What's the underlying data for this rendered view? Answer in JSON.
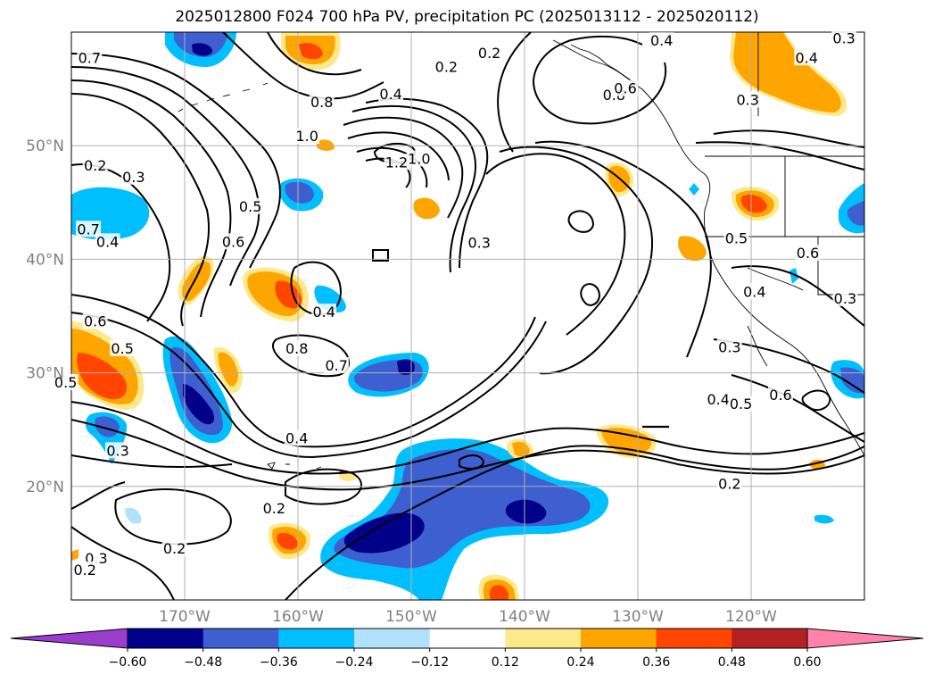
{
  "title": "2025012800 F024 700 hPa PV, precipitation PC (2025013112 - 2025020112)",
  "map": {
    "projection": "equirectangular",
    "lon_range": [
      -180,
      -110
    ],
    "lat_range": [
      10,
      60
    ],
    "lat_ticks": [
      {
        "value": 20,
        "label": "20°N"
      },
      {
        "value": 30,
        "label": "30°N"
      },
      {
        "value": 40,
        "label": "40°N"
      },
      {
        "value": 50,
        "label": "50°N"
      }
    ],
    "lon_ticks": [
      {
        "value": -170,
        "label": "170°W"
      },
      {
        "value": -160,
        "label": "160°W"
      },
      {
        "value": -150,
        "label": "150°W"
      },
      {
        "value": -140,
        "label": "140°W"
      },
      {
        "value": -130,
        "label": "130°W"
      },
      {
        "value": -120,
        "label": "120°W"
      }
    ],
    "grid": true,
    "grid_color": "#b0b0b0"
  },
  "contour_labels": [
    {
      "text": "0.7",
      "lon": -178.4,
      "lat": 57.7
    },
    {
      "text": "0.8",
      "lon": -157.9,
      "lat": 53.8
    },
    {
      "text": "0.4",
      "lon": -151.8,
      "lat": 54.5
    },
    {
      "text": "0.2",
      "lon": -146.9,
      "lat": 56.9
    },
    {
      "text": "0.2",
      "lon": -143.1,
      "lat": 58.1
    },
    {
      "text": "0.4",
      "lon": -127.9,
      "lat": 59.2
    },
    {
      "text": "0.3",
      "lon": -111.8,
      "lat": 59.4
    },
    {
      "text": "0.4",
      "lon": -115.1,
      "lat": 57.7
    },
    {
      "text": "0.3",
      "lon": -120.3,
      "lat": 54.0
    },
    {
      "text": "0.8",
      "lon": -132.1,
      "lat": 54.4
    },
    {
      "text": "0.6",
      "lon": -131.1,
      "lat": 55.0
    },
    {
      "text": "1.0",
      "lon": -159.2,
      "lat": 50.8
    },
    {
      "text": "1.2",
      "lon": -151.3,
      "lat": 48.5
    },
    {
      "text": "1.0",
      "lon": -149.3,
      "lat": 48.8
    },
    {
      "text": "0.2",
      "lon": -177.9,
      "lat": 48.2
    },
    {
      "text": "0.3",
      "lon": -174.5,
      "lat": 47.2
    },
    {
      "text": "0.5",
      "lon": -164.2,
      "lat": 44.6
    },
    {
      "text": "0.6",
      "lon": -165.7,
      "lat": 41.5
    },
    {
      "text": "0.7",
      "lon": -178.5,
      "lat": 42.6
    },
    {
      "text": "0.4",
      "lon": -176.8,
      "lat": 41.5
    },
    {
      "text": "0.3",
      "lon": -144.0,
      "lat": 41.4
    },
    {
      "text": "0.5",
      "lon": -121.3,
      "lat": 41.8
    },
    {
      "text": "0.6",
      "lon": -115.0,
      "lat": 40.5
    },
    {
      "text": "0.4",
      "lon": -119.7,
      "lat": 37.1
    },
    {
      "text": "0.3",
      "lon": -111.7,
      "lat": 36.5
    },
    {
      "text": "0.4",
      "lon": -157.7,
      "lat": 35.3
    },
    {
      "text": "0.6",
      "lon": -177.9,
      "lat": 34.5
    },
    {
      "text": "0.5",
      "lon": -175.5,
      "lat": 32.1
    },
    {
      "text": "0.8",
      "lon": -160.1,
      "lat": 32.1
    },
    {
      "text": "0.7",
      "lon": -156.6,
      "lat": 30.6
    },
    {
      "text": "0.3",
      "lon": -121.9,
      "lat": 32.2
    },
    {
      "text": "0.4",
      "lon": -122.9,
      "lat": 27.6
    },
    {
      "text": "0.5",
      "lon": -120.9,
      "lat": 27.2
    },
    {
      "text": "0.6",
      "lon": -117.4,
      "lat": 28.0
    },
    {
      "text": "0.5",
      "lon": -180.5,
      "lat": 29.1
    },
    {
      "text": "0.4",
      "lon": -160.1,
      "lat": 24.2
    },
    {
      "text": "0.3",
      "lon": -175.9,
      "lat": 23.1
    },
    {
      "text": "0.2",
      "lon": -121.9,
      "lat": 20.2
    },
    {
      "text": "0.2",
      "lon": -162.1,
      "lat": 18.0
    },
    {
      "text": "0.2",
      "lon": -170.9,
      "lat": 14.5
    },
    {
      "text": "0.3",
      "lon": -177.8,
      "lat": 13.6
    },
    {
      "text": "0.2",
      "lon": -178.8,
      "lat": 12.6
    }
  ],
  "colorbar": {
    "levels": [
      "−0.60",
      "−0.48",
      "−0.36",
      "−0.24",
      "−0.12",
      "0.12",
      "0.24",
      "0.36",
      "0.48",
      "0.60"
    ],
    "colors": [
      "#9a3ccc",
      "#00008b",
      "#3d5fcf",
      "#00bfff",
      "#b0e2ff",
      "#ffffff",
      "#ffe88a",
      "#ffa500",
      "#ff4500",
      "#b22222",
      "#ff82ab"
    ],
    "extend": "both"
  }
}
